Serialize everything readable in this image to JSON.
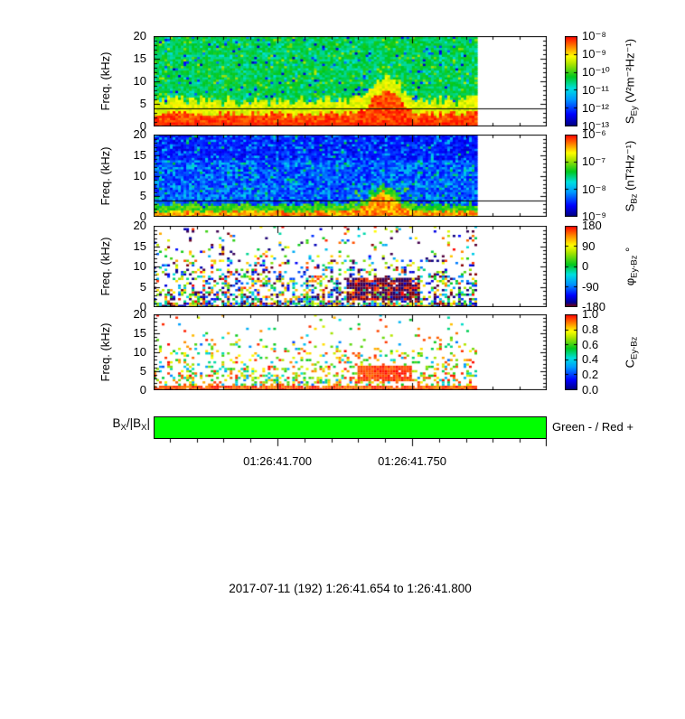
{
  "figure": {
    "caption": "2017-07-11 (192) 1:26:41.654 to 1:26:41.800",
    "bar_label": {
      "b": "B",
      "sub1": "X",
      "mid": "/|B",
      "sub2": "X",
      "end": "|"
    }
  },
  "time_axis": {
    "t_start_s": 41.654,
    "t_end_s": 41.8,
    "minor_step_s": 0.01,
    "major_ticks_s": [
      41.7,
      41.75,
      41.8
    ],
    "labels": [
      {
        "s": 41.7,
        "text": "01:26:41.700"
      },
      {
        "s": 41.75,
        "text": "01:26:41.750"
      }
    ],
    "start_label": "1:26:41.654",
    "end_label": "1:26:41.800"
  },
  "palettes": {
    "jet": [
      [
        0,
        "#000080"
      ],
      [
        0.13,
        "#0000ff"
      ],
      [
        0.3,
        "#009cff"
      ],
      [
        0.42,
        "#00e0e0"
      ],
      [
        0.55,
        "#00c81e"
      ],
      [
        0.7,
        "#b4e600"
      ],
      [
        0.78,
        "#ffff00"
      ],
      [
        0.88,
        "#ff8c00"
      ],
      [
        1,
        "#ff0000"
      ]
    ],
    "phase": [
      [
        0,
        "#8b0000"
      ],
      [
        0.05,
        "#000090"
      ],
      [
        0.14,
        "#0000ff"
      ],
      [
        0.27,
        "#0090ff"
      ],
      [
        0.4,
        "#00e0e0"
      ],
      [
        0.52,
        "#00c81e"
      ],
      [
        0.68,
        "#b4e600"
      ],
      [
        0.76,
        "#ffff00"
      ],
      [
        0.88,
        "#ff8c00"
      ],
      [
        1,
        "#ff0000"
      ]
    ]
  },
  "chart_data": [
    {
      "type": "heatmap",
      "id": "sey",
      "style": "sey",
      "ylabel": "Freq. (kHz)",
      "ylim": [
        0,
        20
      ],
      "yticks": [
        0,
        5,
        10,
        15,
        20
      ],
      "palette": "jet",
      "marker_line_khz": 4,
      "x_range": [
        "1:26:41.654",
        "1:26:41.800"
      ],
      "data_fill_frac": 0.823,
      "colorbar": {
        "scale": "log",
        "ticks": [
          "10⁻⁸",
          "10⁻⁹",
          "10⁻¹⁰",
          "10⁻¹¹",
          "10⁻¹²",
          "10⁻¹³"
        ],
        "title": {
          "base": "S",
          "sub": "Ey",
          "units": " (V²m⁻²Hz⁻¹)"
        }
      },
      "features": {
        "background": "mottled green broadband noise with sparse dark-blue dropouts",
        "low_band": "intense red below ~3 kHz with yellow fringe up to ~5 kHz for the whole interval",
        "burst": "red burst rising to ~8 kHz near 01:26:41.74-41.76",
        "guide_line": "thin horizontal line near 4 kHz"
      }
    },
    {
      "type": "heatmap",
      "id": "sbz",
      "style": "sbz",
      "ylabel": "Freq. (kHz)",
      "ylim": [
        0,
        20
      ],
      "yticks": [
        0,
        5,
        10,
        15,
        20
      ],
      "palette": "jet",
      "marker_line_khz": 4,
      "x_range": [
        "1:26:41.654",
        "1:26:41.800"
      ],
      "data_fill_frac": 0.823,
      "colorbar": {
        "scale": "log",
        "ticks": [
          "10⁻⁶",
          "10⁻⁷",
          "10⁻⁸",
          "10⁻⁹"
        ],
        "title": {
          "base": "S",
          "sub": "Bz",
          "units": " (nT²Hz⁻¹)"
        }
      },
      "features": {
        "background": "dark-blue and cyan noise floor",
        "low_band": "yellow-red enhancement below ~2 kHz",
        "burst": "yellow-orange burst up to ~6 kHz near 01:26:41.74-41.76",
        "guide_line": "thin horizontal line near 4 kHz"
      }
    },
    {
      "type": "heatmap",
      "id": "phase",
      "style": "phase",
      "ylabel": "Freq. (kHz)",
      "ylim": [
        0,
        20
      ],
      "yticks": [
        0,
        5,
        10,
        15,
        20
      ],
      "palette": "phase",
      "x_range": [
        "1:26:41.654",
        "1:26:41.800"
      ],
      "data_fill_frac": 0.823,
      "colorbar": {
        "scale": "linear",
        "ticks": [
          "180",
          "90",
          "0",
          "-90",
          "-180"
        ],
        "title": {
          "base": "φ",
          "sub": "Ey-Bz",
          "units": " °"
        }
      },
      "features": {
        "pattern": "scattered multicolour phase speckle, densest below ~8 kHz",
        "burst": "coherent patch near ±180° (dark red) at 2-7 kHz near 01:26:41.73-41.77"
      }
    },
    {
      "type": "heatmap",
      "id": "coh",
      "style": "coh",
      "ylabel": "Freq. (kHz)",
      "ylim": [
        0,
        20
      ],
      "yticks": [
        0,
        5,
        10,
        15,
        20
      ],
      "palette": "jet",
      "x_range": [
        "1:26:41.654",
        "1:26:41.800"
      ],
      "data_fill_frac": 0.823,
      "colorbar": {
        "scale": "linear",
        "ticks": [
          "1.0",
          "0.8",
          "0.6",
          "0.4",
          "0.2",
          "0.0"
        ],
        "title": {
          "base": "C",
          "sub": "Ey-Bz",
          "units": ""
        }
      },
      "features": {
        "pattern": "speckled low-to-moderate coherence, densest at low frequency",
        "low_band": "red high coherence in the lowest frequency bin",
        "burst": "red high-coherence patch at 3-6 kHz near 01:26:41.74-41.76"
      }
    },
    {
      "type": "indicator-strip",
      "id": "bx-sign",
      "label": "BX/|BX|",
      "color": "#00ff00",
      "value": "negative (green)",
      "legend": "Green - / Red +"
    }
  ]
}
